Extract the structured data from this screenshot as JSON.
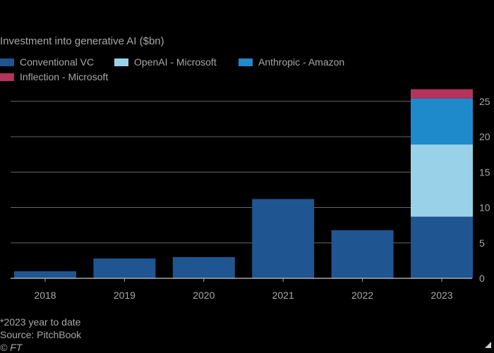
{
  "chart_data": {
    "type": "bar",
    "stacked": true,
    "title": "Investment into generative AI ($bn)",
    "xlabel": "",
    "ylabel": "",
    "categories": [
      "2018",
      "2019",
      "2020",
      "2021",
      "2022",
      "2023"
    ],
    "ylim": [
      0,
      27
    ],
    "yticks": [
      0,
      5,
      10,
      15,
      20,
      25
    ],
    "grid": true,
    "legend_position": "top-left",
    "series": [
      {
        "name": "Conventional VC",
        "color": "#1f5591",
        "values": [
          1.0,
          2.8,
          3.0,
          11.2,
          6.8,
          8.7
        ]
      },
      {
        "name": "OpenAI - Microsoft",
        "color": "#99d2e8",
        "values": [
          0,
          0,
          0,
          0,
          0,
          10.2
        ]
      },
      {
        "name": "Anthropic - Amazon",
        "color": "#1e8acb",
        "values": [
          0,
          0,
          0,
          0,
          0,
          6.5
        ]
      },
      {
        "name": "Inflection - Microsoft",
        "color": "#b5335e",
        "values": [
          0,
          0,
          0,
          0,
          0,
          1.3
        ]
      }
    ]
  },
  "footnotes": {
    "note": "*2023 year to date",
    "source": "Source: PitchBook",
    "credit": "© FT"
  }
}
